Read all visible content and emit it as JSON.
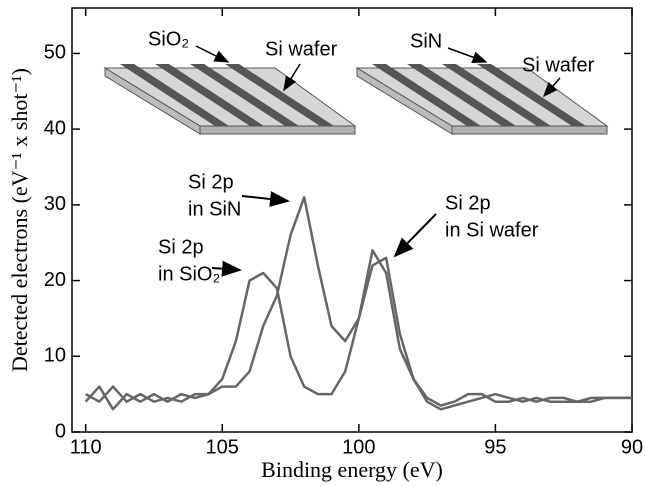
{
  "chart_data": {
    "type": "line",
    "xlabel": "Binding energy (eV)",
    "ylabel": "Detected electrons (eV⁻¹ x shot⁻¹)",
    "x": [
      110,
      109.5,
      109,
      108.5,
      108,
      107.5,
      107,
      106.5,
      106,
      105.5,
      105,
      104.5,
      104,
      103.5,
      103,
      102.5,
      102,
      101.5,
      101,
      100.5,
      100,
      99.5,
      99,
      98.5,
      98,
      97.5,
      97,
      96.5,
      96,
      95.5,
      95,
      94.5,
      94,
      93.5,
      93,
      92.5,
      92,
      91.5,
      91,
      90.5,
      90
    ],
    "series": [
      {
        "color": "#666666",
        "values": [
          5,
          4,
          6,
          4,
          5,
          4,
          4.5,
          4,
          5,
          5,
          6,
          6,
          8,
          14,
          18,
          26,
          31,
          22,
          14,
          12,
          15,
          24,
          21,
          11,
          7,
          4.5,
          3.5,
          4,
          5,
          5,
          4,
          4,
          4.5,
          4,
          4.5,
          4.5,
          4,
          4,
          4.5,
          4.5,
          4.5
        ]
      },
      {
        "color": "#666666",
        "values": [
          4,
          6,
          3,
          5,
          4,
          5,
          4,
          5,
          4.5,
          5,
          7,
          12,
          20,
          21,
          19,
          10,
          6,
          5,
          5,
          8,
          15,
          22,
          23,
          13,
          7,
          4,
          3,
          3.5,
          4,
          4.5,
          5,
          4.5,
          4,
          4.5,
          4,
          4,
          4,
          4.5,
          4.5,
          4.5,
          4.5
        ]
      }
    ],
    "xlim": [
      110.5,
      90
    ],
    "ylim": [
      0,
      56
    ],
    "xticks": [
      110,
      105,
      100,
      95,
      90
    ],
    "yticks": [
      0,
      10,
      20,
      30,
      40,
      50
    ],
    "annotations": [
      {
        "lines": [
          "Si 2p",
          "in SiN"
        ]
      },
      {
        "lines": [
          "Si 2p",
          "in SiO₂"
        ]
      },
      {
        "lines": [
          "Si 2p",
          "in Si wafer"
        ]
      }
    ],
    "inset_labels": [
      "SiO₂",
      "Si wafer",
      "SiN",
      "Si wafer"
    ]
  }
}
